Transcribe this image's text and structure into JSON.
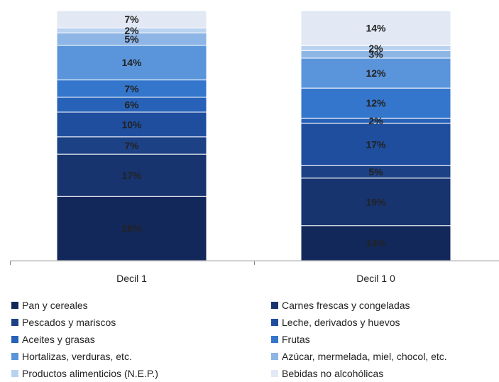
{
  "chart_data": {
    "type": "bar",
    "stacked": true,
    "categories": [
      "Decil 1",
      "Decil 1 0"
    ],
    "ylim": [
      0,
      100
    ],
    "grid": false,
    "legend_position": "bottom",
    "series": [
      {
        "name": "Pan y cereales",
        "color": "#13285a",
        "values": [
          26,
          14
        ]
      },
      {
        "name": "Carnes frescas y congeladas",
        "color": "#17346f",
        "values": [
          17,
          19
        ]
      },
      {
        "name": "Pescados y mariscos",
        "color": "#1c4185",
        "values": [
          7,
          5
        ]
      },
      {
        "name": "Leche, derivados y huevos",
        "color": "#1f4e9f",
        "values": [
          10,
          17
        ]
      },
      {
        "name": "Aceites y grasas",
        "color": "#2762b8",
        "values": [
          6,
          2
        ]
      },
      {
        "name": "Frutas",
        "color": "#3476cc",
        "values": [
          7,
          12
        ]
      },
      {
        "name": "Hortalizas, verduras, etc.",
        "color": "#5a95dc",
        "values": [
          14,
          12
        ]
      },
      {
        "name": "Azúcar, mermelada, miel, chocol, etc.",
        "color": "#8db5e6",
        "values": [
          5,
          3
        ]
      },
      {
        "name": "Productos alimenticios (N.E.P.)",
        "color": "#b9d2f0",
        "values": [
          2,
          2
        ]
      },
      {
        "name": "Bebidas no alcohólicas",
        "color": "#e2e9f5",
        "values": [
          7,
          14
        ]
      }
    ],
    "data_labels": [
      [
        "26%",
        "17%",
        "7%",
        "10%",
        "6%",
        "7%",
        "14%",
        "5%",
        "2%",
        "7%"
      ],
      [
        "14%",
        "19%",
        "5%",
        "17%",
        "2%",
        "12%",
        "12%",
        "3%",
        "2%",
        "14%"
      ]
    ]
  }
}
